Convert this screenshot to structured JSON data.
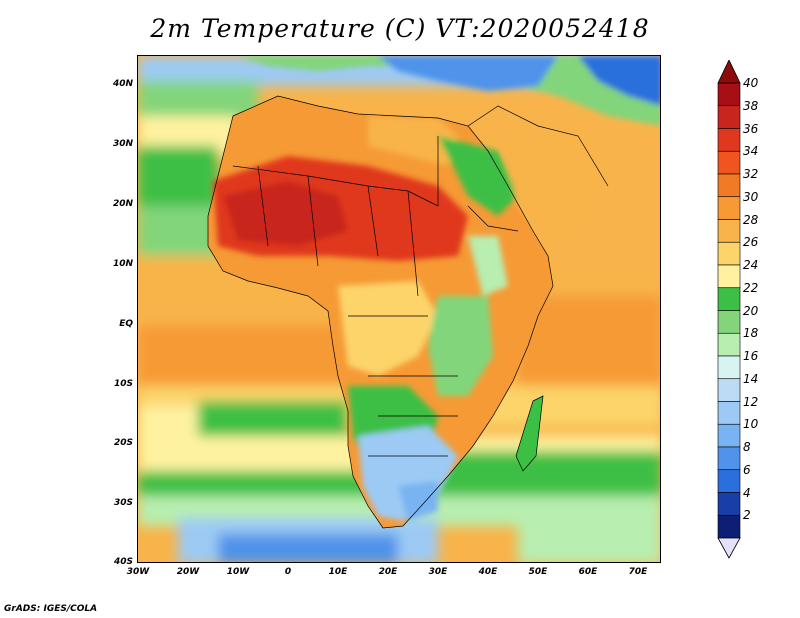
{
  "title": "2m Temperature (C) VT:2020052418",
  "footer": "GrADS: IGES/COLA",
  "map": {
    "lat_labels": [
      "40N",
      "30N",
      "20N",
      "10N",
      "EQ",
      "10S",
      "20S",
      "30S",
      "40S"
    ],
    "lon_labels": [
      "30W",
      "20W",
      "10W",
      "0",
      "10E",
      "20E",
      "30E",
      "40E",
      "50E",
      "60E",
      "70E"
    ]
  },
  "colorbar": {
    "labels": [
      "40",
      "38",
      "36",
      "34",
      "32",
      "30",
      "28",
      "26",
      "24",
      "22",
      "20",
      "18",
      "16",
      "14",
      "12",
      "10",
      "8",
      "6",
      "4",
      "2"
    ],
    "colors": [
      "#a50f15",
      "#c8251e",
      "#e0371f",
      "#f0541f",
      "#f07a26",
      "#f69a35",
      "#f8b44a",
      "#fcd46a",
      "#fef2a0",
      "#3cbf45",
      "#82d57a",
      "#b8eeb0",
      "#d8f4f2",
      "#bcdcf6",
      "#9ccaf4",
      "#78b4f2",
      "#4f93ea",
      "#2b6fdc",
      "#1a3ea8",
      "#0c1f74"
    ],
    "top_arrow_color": "#8b0a0a",
    "bottom_arrow_color": "#e6e0f8"
  }
}
